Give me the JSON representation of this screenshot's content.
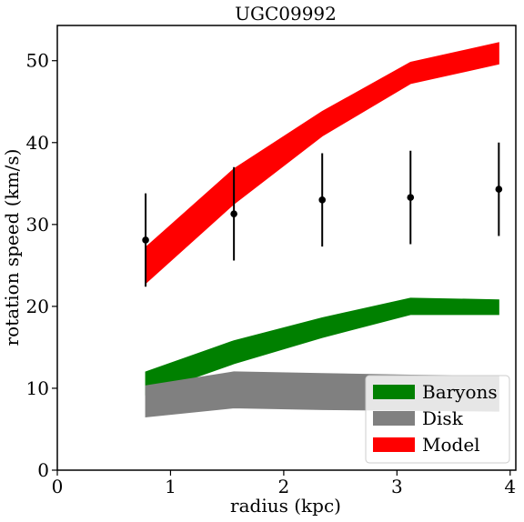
{
  "chart_data": {
    "type": "area",
    "title": "UGC09992",
    "xlabel": "radius (kpc)",
    "ylabel": "rotation speed (km/s)",
    "xlim": [
      0,
      4.05
    ],
    "ylim": [
      0,
      54.3
    ],
    "xticks": [
      "0",
      "1",
      "2",
      "3",
      "4"
    ],
    "yticks": [
      "0",
      "10",
      "20",
      "30",
      "40",
      "50"
    ],
    "x": [
      0.78,
      1.56,
      2.34,
      3.12,
      3.9
    ],
    "series": [
      {
        "name": "Baryons",
        "color": "#008000",
        "lower": [
          9.2,
          13.0,
          16.2,
          19.0,
          19.0
        ],
        "upper": [
          12.0,
          15.8,
          18.6,
          21.0,
          20.8
        ]
      },
      {
        "name": "Disk",
        "color": "#808080",
        "lower": [
          6.5,
          7.6,
          7.4,
          7.3,
          7.2
        ],
        "upper": [
          10.3,
          12.0,
          11.8,
          11.6,
          11.5
        ]
      },
      {
        "name": "Model",
        "color": "#ff0000",
        "lower": [
          22.8,
          32.5,
          40.8,
          47.2,
          49.6
        ],
        "upper": [
          27.2,
          36.8,
          43.8,
          49.8,
          52.2
        ]
      }
    ],
    "observed": {
      "y": [
        28.1,
        31.3,
        33.0,
        33.3,
        34.3
      ],
      "err": [
        5.7,
        5.7,
        5.7,
        5.7,
        5.7
      ]
    },
    "legend": {
      "position": "lower right",
      "entries": [
        "Baryons",
        "Disk",
        "Model"
      ]
    }
  }
}
